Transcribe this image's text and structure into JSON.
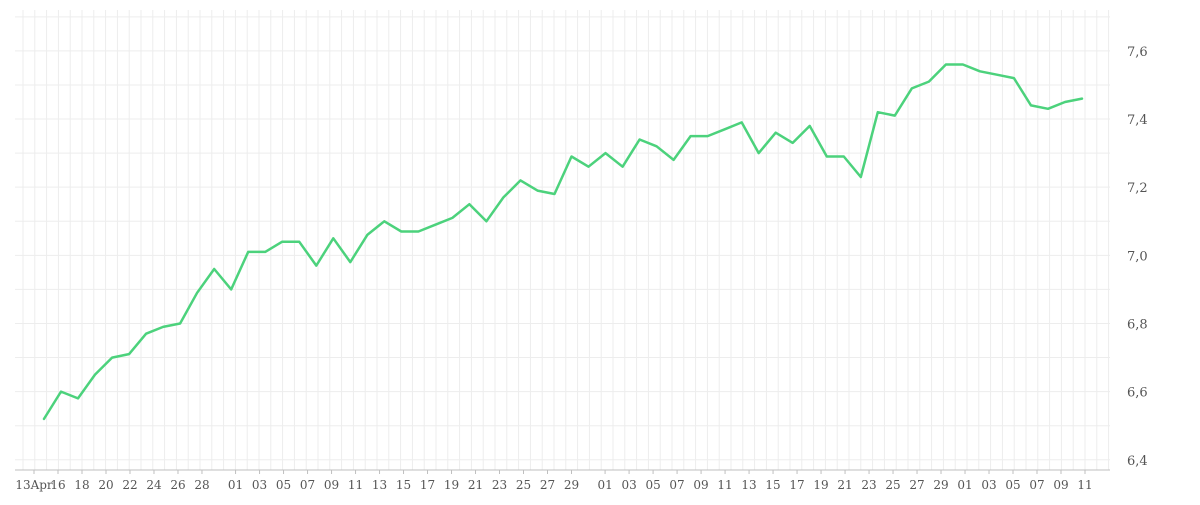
{
  "chart_data": {
    "type": "line",
    "title": "",
    "xlabel": "",
    "ylabel": "",
    "ylim": [
      6.37,
      7.72
    ],
    "grid": true,
    "colors": {
      "line": "#4cd27c",
      "grid": "#ededed",
      "axis": "#bfbfbf"
    },
    "y_ticks": [
      6.4,
      6.6,
      6.8,
      7.0,
      7.2,
      7.4,
      7.6
    ],
    "y_tick_labels": [
      "6,4",
      "6,6",
      "6,8",
      "7,0",
      "7,2",
      "7,4",
      "7,6"
    ],
    "x_tick_labels": [
      "13Apr",
      "16",
      "18",
      "20",
      "22",
      "24",
      "26",
      "28",
      "01",
      "03",
      "05",
      "07",
      "09",
      "11",
      "13",
      "15",
      "17",
      "19",
      "21",
      "23",
      "25",
      "27",
      "29",
      "01",
      "03",
      "05",
      "07",
      "09",
      "11",
      "13",
      "15",
      "17",
      "19",
      "21",
      "23",
      "25",
      "27",
      "29",
      "01",
      "03",
      "05",
      "07",
      "09",
      "11"
    ],
    "series": [
      {
        "values": [
          6.52,
          6.6,
          6.58,
          6.65,
          6.7,
          6.71,
          6.77,
          6.79,
          6.8,
          6.89,
          6.96,
          6.9,
          7.01,
          7.01,
          7.04,
          7.04,
          6.97,
          7.05,
          6.98,
          7.06,
          7.1,
          7.07,
          7.07,
          7.09,
          7.11,
          7.15,
          7.1,
          7.17,
          7.22,
          7.19,
          7.18,
          7.29,
          7.26,
          7.3,
          7.26,
          7.34,
          7.32,
          7.28,
          7.35,
          7.35,
          7.37,
          7.39,
          7.3,
          7.36,
          7.33,
          7.38,
          7.29,
          7.29,
          7.23,
          7.42,
          7.41,
          7.49,
          7.51,
          7.56,
          7.56,
          7.54,
          7.53,
          7.52,
          7.44,
          7.43,
          7.45,
          7.46
        ]
      }
    ]
  }
}
